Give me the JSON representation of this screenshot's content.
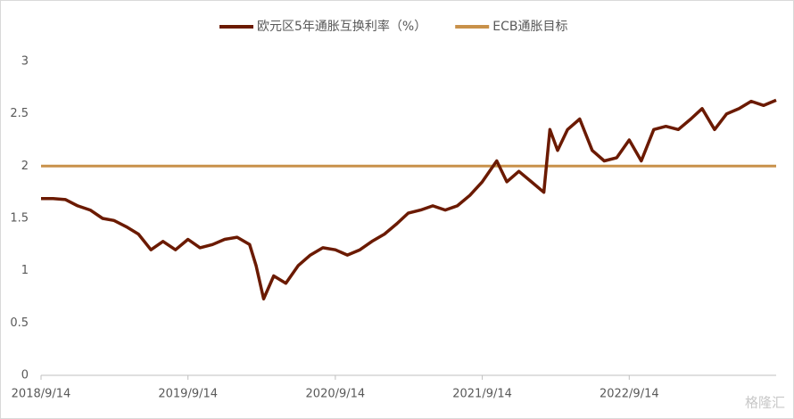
{
  "chart_data": {
    "type": "line",
    "xlim": [
      "2018/9/14",
      "2023/9/14"
    ],
    "xticks": [
      "2018/9/14",
      "2019/9/14",
      "2020/9/14",
      "2021/9/14",
      "2022/9/14"
    ],
    "ylim": [
      0,
      3
    ],
    "yticks": [
      0,
      0.5,
      1,
      1.5,
      2,
      2.5,
      3
    ],
    "grid": false,
    "legend": "top",
    "watermark": "格隆汇",
    "series": [
      {
        "name": "欧元区5年通胀互换利率（%）",
        "color": "#6b1a00",
        "x": [
          "2018/9/14",
          "2018/10/14",
          "2018/11/14",
          "2018/12/14",
          "2019/1/14",
          "2019/2/14",
          "2019/3/14",
          "2019/4/14",
          "2019/5/14",
          "2019/6/14",
          "2019/7/14",
          "2019/8/14",
          "2019/9/14",
          "2019/10/14",
          "2019/11/14",
          "2019/12/14",
          "2020/1/14",
          "2020/2/14",
          "2020/3/1",
          "2020/3/20",
          "2020/4/14",
          "2020/5/14",
          "2020/6/14",
          "2020/7/14",
          "2020/8/14",
          "2020/9/14",
          "2020/10/14",
          "2020/11/14",
          "2020/12/14",
          "2021/1/14",
          "2021/2/14",
          "2021/3/14",
          "2021/4/14",
          "2021/5/14",
          "2021/6/14",
          "2021/7/14",
          "2021/8/14",
          "2021/9/14",
          "2021/10/20",
          "2021/11/14",
          "2021/12/14",
          "2022/1/14",
          "2022/2/14",
          "2022/3/1",
          "2022/3/20",
          "2022/4/14",
          "2022/5/14",
          "2022/6/14",
          "2022/7/14",
          "2022/8/14",
          "2022/9/14",
          "2022/10/14",
          "2022/11/14",
          "2022/12/14",
          "2023/1/14",
          "2023/2/14",
          "2023/3/14",
          "2023/4/14",
          "2023/5/14",
          "2023/6/14",
          "2023/7/14",
          "2023/8/14",
          "2023/9/14"
        ],
        "values": [
          1.69,
          1.69,
          1.68,
          1.62,
          1.58,
          1.5,
          1.48,
          1.42,
          1.35,
          1.2,
          1.28,
          1.2,
          1.3,
          1.22,
          1.25,
          1.3,
          1.32,
          1.25,
          1.05,
          0.73,
          0.95,
          0.88,
          1.05,
          1.15,
          1.22,
          1.2,
          1.15,
          1.2,
          1.28,
          1.35,
          1.45,
          1.55,
          1.58,
          1.62,
          1.58,
          1.62,
          1.72,
          1.85,
          2.05,
          1.85,
          1.95,
          1.85,
          1.75,
          2.35,
          2.15,
          2.35,
          2.45,
          2.15,
          2.05,
          2.08,
          2.25,
          2.05,
          2.35,
          2.38,
          2.35,
          2.45,
          2.55,
          2.35,
          2.5,
          2.55,
          2.62,
          2.58,
          2.63
        ]
      },
      {
        "name": "ECB通胀目标",
        "color": "#c8914a",
        "x": [
          "2018/9/14",
          "2023/9/14"
        ],
        "values": [
          2,
          2
        ]
      }
    ]
  }
}
